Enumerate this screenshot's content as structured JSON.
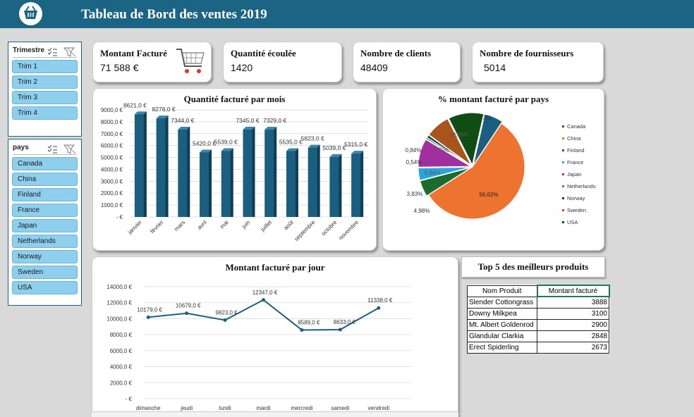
{
  "header": {
    "title": "Tableau de Bord des ventes 2019",
    "logo_icon": "shopping-basket-icon"
  },
  "slicers": {
    "trimestre": {
      "title": "Trimestre",
      "items": [
        "Trim 1",
        "Trim 2",
        "Trim 3",
        "Trim 4"
      ]
    },
    "pays": {
      "title": "pays",
      "items": [
        "Canada",
        "China",
        "Finland",
        "France",
        "Japan",
        "Netherlands",
        "Norway",
        "Sweden",
        "USA"
      ]
    }
  },
  "kpis": [
    {
      "label": "Montant Facturé",
      "value": "71 588 €"
    },
    {
      "label": "Quantité écoulée",
      "value": "1420"
    },
    {
      "label": "Nombre de clients",
      "value": "48409"
    },
    {
      "label": "Nombre de fournisseurs",
      "value": "5014"
    }
  ],
  "colors": {
    "header": "#1b6484",
    "bar": "#1b5f80",
    "slicer_item": "#8ecfee",
    "line": "#1b5f80"
  },
  "chart_data": [
    {
      "type": "bar",
      "title": "Quantité facturé par mois",
      "categories": [
        "janvier",
        "février",
        "mars",
        "avril",
        "mai",
        "juin",
        "juillet",
        "août",
        "septembre",
        "octobre",
        "novembre"
      ],
      "values": [
        8621,
        8278,
        7344,
        5420,
        5539,
        7345,
        7329,
        5535,
        5823,
        5039,
        5315
      ],
      "data_labels": [
        "8621,0 €",
        "8278,0 €",
        "7344,0 €",
        "5420,0 €",
        "5539,0 €",
        "7345,0 €",
        "7329,0 €",
        "5535,0 €",
        "5823,0 €",
        "5039,0 €",
        "5315,0 €"
      ],
      "ylim": [
        0,
        9000
      ],
      "yticks": [
        "- €",
        "1000,0 €",
        "2000,0 €",
        "3000,0 €",
        "4000,0 €",
        "5000,0 €",
        "6000,0 €",
        "7000,0 €",
        "8000,0 €",
        "9000,0 €"
      ],
      "grid": true
    },
    {
      "type": "pie",
      "title": "% montant facturé par pays",
      "labels": [
        "Canada",
        "China",
        "Finland",
        "France",
        "Japan",
        "Netherlands",
        "Norway",
        "Sweden",
        "USA"
      ],
      "values": [
        5.83,
        56.62,
        4.98,
        3.83,
        8.84,
        0.54,
        0.84,
        7.55,
        10.96
      ],
      "data_labels": [
        "5,83%",
        "56,62%",
        "4,98%",
        "3,83%",
        "8,84%",
        "0,54%",
        "0,84%",
        "7,55%",
        "10,96%"
      ],
      "colors": [
        "#1b5f80",
        "#ee7330",
        "#1a6b2c",
        "#27a6dc",
        "#a22fa0",
        "#3f9a3c",
        "#15405c",
        "#a8541a",
        "#0f4d14"
      ],
      "legend": "right"
    },
    {
      "type": "line",
      "title": "Montant facturé par jour",
      "categories": [
        "dimanche",
        "jeudi",
        "lundi",
        "mardi",
        "mercredi",
        "samedi",
        "vendredi"
      ],
      "values": [
        10179,
        10679,
        9823,
        12347,
        8589,
        8633,
        11338
      ],
      "data_labels": [
        "10179,0 €",
        "10679,0 €",
        "9823,0 €",
        "12347,0 €",
        "8589,0 €",
        "8633,0 €",
        "11338,0 €"
      ],
      "ylim": [
        0,
        14000
      ],
      "yticks": [
        "- €",
        "2000,0 €",
        "4000,0 €",
        "6000,0 €",
        "8000,0 €",
        "10000,0 €",
        "12000,0 €",
        "14000,0 €"
      ],
      "grid": true
    }
  ],
  "top5": {
    "title": "Top 5 des meilleurs produits",
    "columns": [
      "Nom Produit",
      "Montant facturé"
    ],
    "rows": [
      {
        "name": "Slender Cottongrass",
        "value": "3888"
      },
      {
        "name": "Downy Milkpea",
        "value": "3100"
      },
      {
        "name": "Mt. Albert Goldenrod",
        "value": "2900"
      },
      {
        "name": "Glandular Clarkia",
        "value": "2848"
      },
      {
        "name": "Erect Spiderling",
        "value": "2673"
      }
    ]
  }
}
